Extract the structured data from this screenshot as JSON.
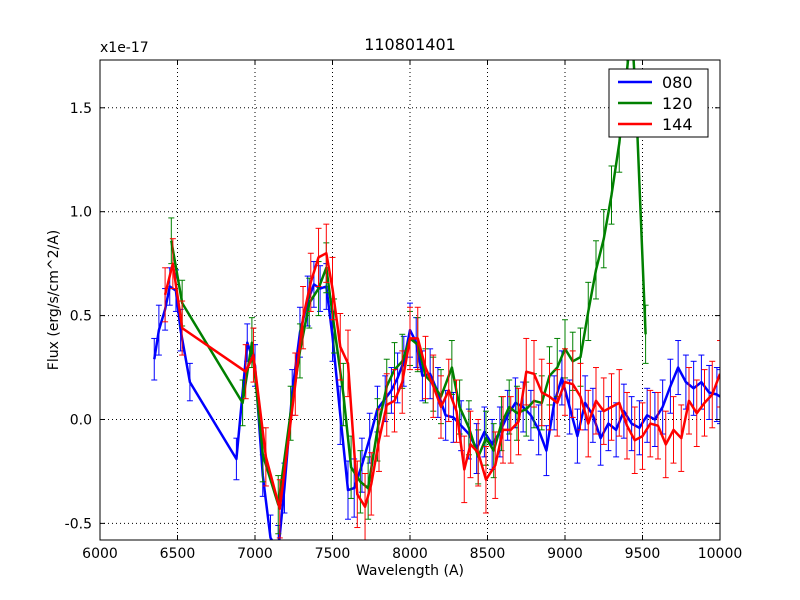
{
  "chart_data": {
    "type": "line",
    "title": "110801401",
    "xlabel": "Wavelength (A)",
    "ylabel": "Flux (erg/s/cm^2/A)",
    "offset_label": "x1e-17",
    "xlim": [
      6000,
      10000
    ],
    "ylim": [
      -0.58,
      1.73
    ],
    "grid": true,
    "legend_position": "top-right",
    "x_ticks": [
      {
        "value": 6000,
        "label": "6000"
      },
      {
        "value": 6500,
        "label": "6500"
      },
      {
        "value": 7000,
        "label": "7000"
      },
      {
        "value": 7500,
        "label": "7500"
      },
      {
        "value": 8000,
        "label": "8000"
      },
      {
        "value": 8500,
        "label": "8500"
      },
      {
        "value": 9000,
        "label": "9000"
      },
      {
        "value": 9500,
        "label": "9500"
      },
      {
        "value": 10000,
        "label": "10000"
      }
    ],
    "y_ticks": [
      {
        "value": -0.5,
        "label": "-0.5"
      },
      {
        "value": 0.0,
        "label": "0.0"
      },
      {
        "value": 0.5,
        "label": "0.5"
      },
      {
        "value": 1.0,
        "label": "1.0"
      },
      {
        "value": 1.5,
        "label": "1.5"
      }
    ],
    "series": [
      {
        "name": "080",
        "color": "#0000ff",
        "x": [
          6350,
          6380,
          6420,
          6450,
          6490,
          6520,
          6580,
          6880,
          6950,
          7000,
          7050,
          7100,
          7150,
          7190,
          7240,
          7290,
          7340,
          7380,
          7420,
          7460,
          7500,
          7550,
          7600,
          7640,
          7690,
          7740,
          7790,
          7840,
          7880,
          7920,
          7960,
          8000,
          8040,
          8080,
          8130,
          8180,
          8230,
          8280,
          8330,
          8380,
          8430,
          8480,
          8530,
          8580,
          8630,
          8680,
          8730,
          8780,
          8830,
          8880,
          8930,
          8980,
          9030,
          9080,
          9130,
          9180,
          9230,
          9280,
          9330,
          9380,
          9430,
          9480,
          9530,
          9580,
          9630,
          9680,
          9730,
          9780,
          9830,
          9880,
          9930,
          9980,
          10000
        ],
        "y": [
          0.29,
          0.43,
          0.53,
          0.64,
          0.62,
          0.43,
          0.18,
          -0.19,
          0.37,
          0.26,
          -0.27,
          -0.57,
          -0.63,
          -0.33,
          0.13,
          0.42,
          0.57,
          0.65,
          0.63,
          0.64,
          0.4,
          0.02,
          -0.34,
          -0.33,
          -0.22,
          -0.09,
          0.05,
          0.1,
          0.14,
          0.2,
          0.28,
          0.43,
          0.37,
          0.21,
          0.22,
          0.13,
          0.02,
          0.01,
          -0.03,
          -0.07,
          -0.14,
          -0.06,
          -0.12,
          -0.06,
          0.02,
          0.08,
          0.06,
          0.02,
          -0.05,
          -0.15,
          0.08,
          0.2,
          0.06,
          -0.08,
          0.08,
          0.02,
          -0.09,
          -0.02,
          -0.05,
          0.04,
          -0.02,
          -0.04,
          0.02,
          0.0,
          0.06,
          0.16,
          0.25,
          0.18,
          0.15,
          0.18,
          0.13,
          0.12,
          0.11
        ],
        "err": [
          0.1,
          0.12,
          0.1,
          0.09,
          0.1,
          0.1,
          0.09,
          0.1,
          0.09,
          0.1,
          0.1,
          0.11,
          0.12,
          0.12,
          0.11,
          0.12,
          0.12,
          0.11,
          0.11,
          0.11,
          0.12,
          0.14,
          0.14,
          0.14,
          0.13,
          0.12,
          0.11,
          0.11,
          0.11,
          0.12,
          0.12,
          0.13,
          0.12,
          0.12,
          0.12,
          0.12,
          0.12,
          0.12,
          0.12,
          0.12,
          0.12,
          0.12,
          0.12,
          0.12,
          0.12,
          0.12,
          0.12,
          0.12,
          0.12,
          0.12,
          0.13,
          0.13,
          0.13,
          0.13,
          0.13,
          0.13,
          0.13,
          0.13,
          0.13,
          0.13,
          0.13,
          0.13,
          0.13,
          0.13,
          0.13,
          0.13,
          0.13,
          0.13,
          0.13,
          0.13,
          0.13,
          0.13,
          0.13
        ]
      },
      {
        "name": "120",
        "color": "#008000",
        "x": [
          6460,
          6530,
          6920,
          6980,
          7050,
          7150,
          7230,
          7290,
          7350,
          7410,
          7460,
          7510,
          7570,
          7620,
          7680,
          7730,
          7790,
          7850,
          7900,
          7950,
          8000,
          8050,
          8100,
          8150,
          8200,
          8270,
          8320,
          8380,
          8440,
          8490,
          8540,
          8590,
          8640,
          8690,
          8750,
          8800,
          8850,
          8900,
          8950,
          9000,
          9050,
          9100,
          9150,
          9200,
          9250,
          9300,
          9350,
          9400,
          9430,
          9460,
          9520
        ],
        "y": [
          0.86,
          0.56,
          0.08,
          0.37,
          -0.17,
          -0.41,
          0.03,
          0.33,
          0.56,
          0.63,
          0.73,
          0.45,
          0.12,
          -0.23,
          -0.3,
          -0.33,
          -0.05,
          0.16,
          0.24,
          0.28,
          0.39,
          0.36,
          0.21,
          0.17,
          0.11,
          0.25,
          0.06,
          -0.04,
          -0.18,
          -0.09,
          -0.15,
          -0.02,
          0.06,
          0.03,
          0.05,
          0.09,
          0.08,
          0.21,
          0.25,
          0.34,
          0.28,
          0.3,
          0.52,
          0.72,
          0.87,
          1.08,
          1.33,
          1.68,
          1.9,
          1.5,
          0.41
        ],
        "err": [
          0.11,
          0.11,
          0.11,
          0.12,
          0.13,
          0.14,
          0.13,
          0.13,
          0.12,
          0.13,
          0.12,
          0.13,
          0.15,
          0.15,
          0.15,
          0.15,
          0.15,
          0.13,
          0.13,
          0.13,
          0.13,
          0.13,
          0.13,
          0.13,
          0.13,
          0.13,
          0.13,
          0.13,
          0.13,
          0.13,
          0.13,
          0.13,
          0.13,
          0.13,
          0.13,
          0.13,
          0.13,
          0.14,
          0.14,
          0.14,
          0.14,
          0.14,
          0.14,
          0.14,
          0.14,
          0.14,
          0.14,
          0.14,
          0.14,
          0.14,
          0.14
        ]
      },
      {
        "name": "144",
        "color": "#ff0000",
        "x": [
          6420,
          6470,
          6530,
          6940,
          6990,
          7070,
          7160,
          7260,
          7310,
          7360,
          7410,
          7460,
          7500,
          7550,
          7600,
          7660,
          7710,
          7750,
          7800,
          7850,
          7900,
          7950,
          8000,
          8050,
          8100,
          8150,
          8200,
          8250,
          8300,
          8350,
          8390,
          8440,
          8490,
          8550,
          8600,
          8650,
          8700,
          8750,
          8800,
          8850,
          8900,
          8950,
          9000,
          9050,
          9100,
          9150,
          9200,
          9250,
          9300,
          9350,
          9400,
          9450,
          9500,
          9550,
          9600,
          9650,
          9700,
          9750,
          9800,
          9850,
          9900,
          9950,
          10000
        ],
        "y": [
          0.6,
          0.75,
          0.44,
          0.23,
          0.31,
          -0.18,
          -0.43,
          0.17,
          0.49,
          0.66,
          0.78,
          0.8,
          0.63,
          0.35,
          0.27,
          -0.36,
          -0.42,
          -0.31,
          -0.1,
          0.07,
          0.09,
          0.18,
          0.39,
          0.39,
          0.25,
          0.16,
          0.06,
          0.14,
          0.04,
          -0.24,
          -0.12,
          -0.16,
          -0.29,
          -0.22,
          -0.05,
          -0.05,
          -0.01,
          0.23,
          0.22,
          0.13,
          0.11,
          0.08,
          0.18,
          0.17,
          0.11,
          -0.02,
          0.09,
          0.04,
          0.06,
          0.08,
          -0.03,
          -0.1,
          -0.08,
          -0.02,
          -0.03,
          -0.12,
          -0.05,
          -0.09,
          0.09,
          0.03,
          0.08,
          0.12,
          0.22
        ],
        "err": [
          0.13,
          0.12,
          0.13,
          0.13,
          0.13,
          0.14,
          0.14,
          0.15,
          0.15,
          0.14,
          0.14,
          0.14,
          0.15,
          0.16,
          0.16,
          0.16,
          0.16,
          0.15,
          0.15,
          0.15,
          0.15,
          0.15,
          0.15,
          0.15,
          0.15,
          0.15,
          0.15,
          0.15,
          0.15,
          0.16,
          0.16,
          0.16,
          0.16,
          0.16,
          0.16,
          0.16,
          0.16,
          0.16,
          0.16,
          0.16,
          0.16,
          0.16,
          0.16,
          0.16,
          0.16,
          0.16,
          0.16,
          0.16,
          0.16,
          0.16,
          0.16,
          0.16,
          0.16,
          0.16,
          0.16,
          0.16,
          0.16,
          0.16,
          0.16,
          0.16,
          0.16,
          0.16,
          0.16
        ]
      }
    ]
  }
}
